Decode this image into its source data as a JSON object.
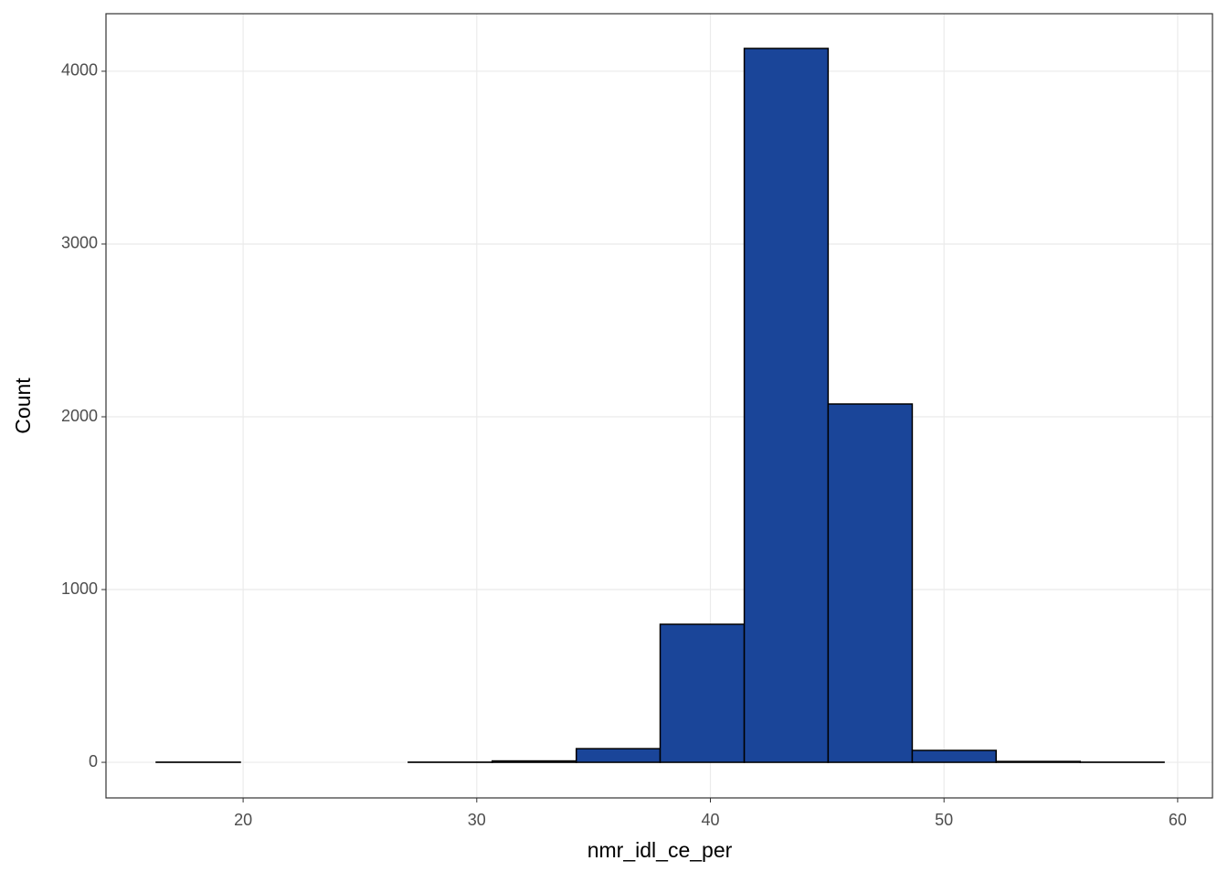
{
  "chart_data": {
    "type": "histogram",
    "x_label": "nmr_idl_ce_per",
    "y_label": "Count",
    "bins": [
      16.28,
      19.88,
      23.47,
      27.07,
      30.66,
      34.26,
      37.85,
      41.45,
      45.04,
      48.64,
      52.23,
      55.83,
      59.42
    ],
    "counts": [
      1,
      0,
      0,
      1,
      8,
      79,
      799,
      4132,
      2074,
      69,
      5,
      1
    ],
    "color": "#1a4599",
    "edgecolor": "#000000",
    "xlim": [
      14.13,
      61.49
    ],
    "ylim": [
      -206,
      4333
    ],
    "xticks": [
      20,
      30,
      40,
      50,
      60
    ],
    "yticks": [
      0,
      1000,
      2000,
      3000,
      4000
    ],
    "grid": true
  }
}
